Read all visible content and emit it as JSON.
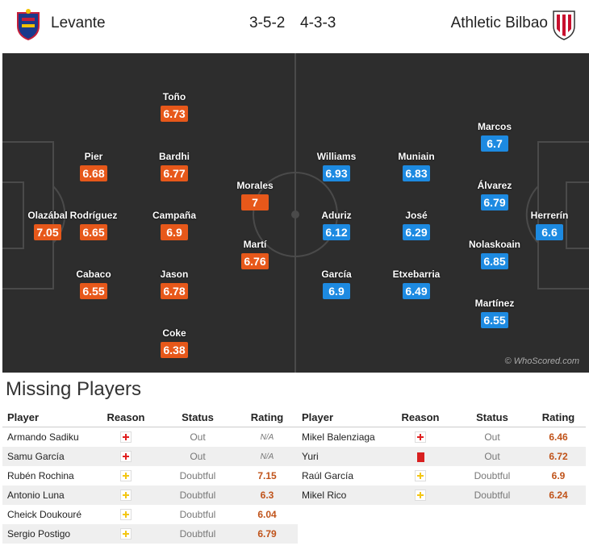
{
  "header": {
    "home_team": "Levante",
    "home_formation": "3-5-2",
    "away_formation": "4-3-3",
    "away_team": "Athletic Bilbao"
  },
  "colors": {
    "home_rating": "#e7581a",
    "away_rating": "#1d8ae1",
    "pitch": "#2d2d2d"
  },
  "pitch": {
    "credit": "© WhoScored.com",
    "home_players": [
      {
        "name": "Olazábal",
        "rating": "7.05"
      },
      {
        "name": "Pier",
        "rating": "6.68"
      },
      {
        "name": "Rodríguez",
        "rating": "6.65"
      },
      {
        "name": "Cabaco",
        "rating": "6.55"
      },
      {
        "name": "Toño",
        "rating": "6.73"
      },
      {
        "name": "Bardhi",
        "rating": "6.77"
      },
      {
        "name": "Campaña",
        "rating": "6.9"
      },
      {
        "name": "Jason",
        "rating": "6.78"
      },
      {
        "name": "Coke",
        "rating": "6.38"
      },
      {
        "name": "Morales",
        "rating": "7"
      },
      {
        "name": "Martí",
        "rating": "6.76"
      }
    ],
    "away_players": [
      {
        "name": "Williams",
        "rating": "6.93"
      },
      {
        "name": "Aduriz",
        "rating": "6.12"
      },
      {
        "name": "García",
        "rating": "6.9"
      },
      {
        "name": "Muniain",
        "rating": "6.83"
      },
      {
        "name": "José",
        "rating": "6.29"
      },
      {
        "name": "Etxebarria",
        "rating": "6.49"
      },
      {
        "name": "Marcos",
        "rating": "6.7"
      },
      {
        "name": "Álvarez",
        "rating": "6.79"
      },
      {
        "name": "Nolaskoain",
        "rating": "6.85"
      },
      {
        "name": "Martínez",
        "rating": "6.55"
      },
      {
        "name": "Herrerín",
        "rating": "6.6"
      }
    ]
  },
  "missing": {
    "title": "Missing Players",
    "headers": {
      "player": "Player",
      "reason": "Reason",
      "status": "Status",
      "rating": "Rating"
    },
    "home": [
      {
        "player": "Armando Sadiku",
        "reason": "injury-icon",
        "status": "Out",
        "rating": "N/A"
      },
      {
        "player": "Samu García",
        "reason": "injury-icon",
        "status": "Out",
        "rating": "N/A"
      },
      {
        "player": "Rubén Rochina",
        "reason": "doubtful-icon",
        "status": "Doubtful",
        "rating": "7.15"
      },
      {
        "player": "Antonio Luna",
        "reason": "doubtful-icon",
        "status": "Doubtful",
        "rating": "6.3"
      },
      {
        "player": "Cheick Doukouré",
        "reason": "doubtful-icon",
        "status": "Doubtful",
        "rating": "6.04"
      },
      {
        "player": "Sergio Postigo",
        "reason": "doubtful-icon",
        "status": "Doubtful",
        "rating": "6.79"
      }
    ],
    "away": [
      {
        "player": "Mikel Balenziaga",
        "reason": "injury-icon",
        "status": "Out",
        "rating": "6.46"
      },
      {
        "player": "Yuri",
        "reason": "red-card-icon",
        "status": "Out",
        "rating": "6.72"
      },
      {
        "player": "Raúl García",
        "reason": "doubtful-icon",
        "status": "Doubtful",
        "rating": "6.9"
      },
      {
        "player": "Mikel Rico",
        "reason": "doubtful-icon",
        "status": "Doubtful",
        "rating": "6.24"
      }
    ]
  }
}
